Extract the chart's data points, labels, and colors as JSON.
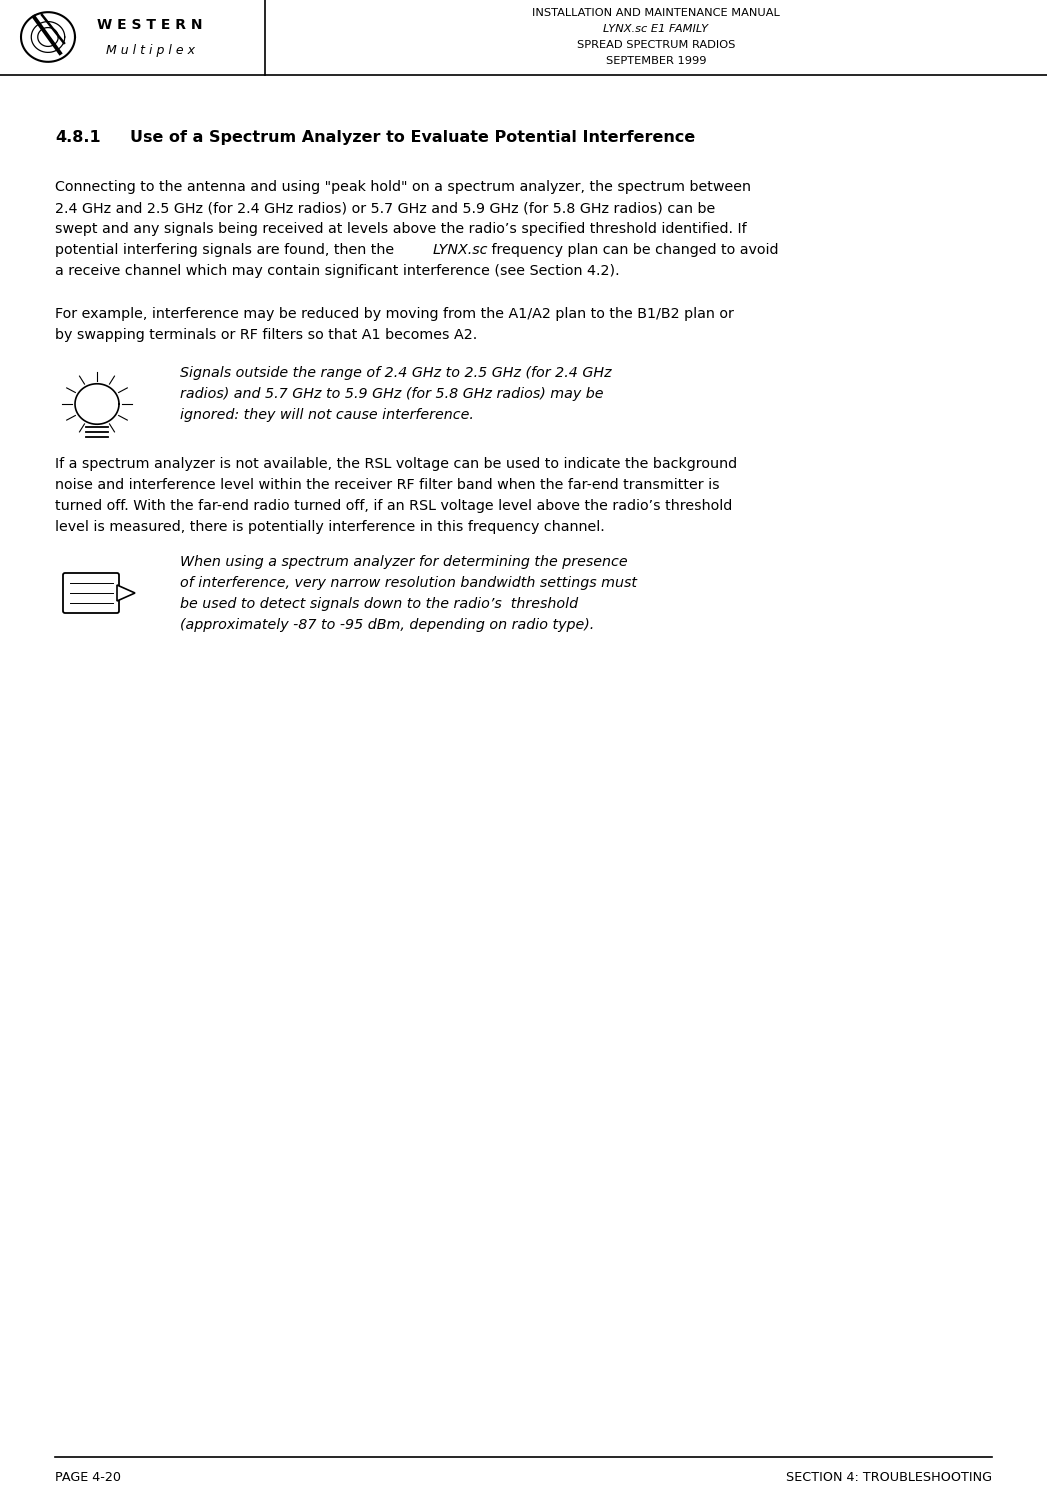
{
  "header_line1": "INSTALLATION AND MAINTENANCE MANUAL",
  "header_line2": "LYNX.sc E1 FAMILY",
  "header_line3": "SPREAD SPECTRUM RADIOS",
  "header_line4": "SEPTEMBER 1999",
  "section_title_num": "4.8.1",
  "section_title_text": "Use of a Spectrum Analyzer to Evaluate Potential Interference",
  "para1_line1": "Connecting to the antenna and using \"peak hold\" on a spectrum analyzer, the spectrum between",
  "para1_line2": "2.4 GHz and 2.5 GHz (for 2.4 GHz radios) or 5.7 GHz and 5.9 GHz (for 5.8 GHz radios) can be",
  "para1_line3": "swept and any signals being received at levels above the radio’s specified threshold identified. If",
  "para1_line4a": "potential interfering signals are found, then the ",
  "para1_line4b": "LYNX.sc",
  "para1_line4c": " frequency plan can be changed to avoid",
  "para1_line5": "a receive channel which may contain significant interference (see Section 4.2).",
  "para2_line1": "For example, interference may be reduced by moving from the A1/A2 plan to the B1/B2 plan or",
  "para2_line2": "by swapping terminals or RF filters so that A1 becomes A2.",
  "note1_line1": "Signals outside the range of 2.4 GHz to 2.5 GHz (for 2.4 GHz",
  "note1_line2": "radios) and 5.7 GHz to 5.9 GHz (for 5.8 GHz radios) may be",
  "note1_line3": "ignored: they will not cause interference.",
  "para3_line1": "If a spectrum analyzer is not available, the RSL voltage can be used to indicate the background",
  "para3_line2": "noise and interference level within the receiver RF filter band when the far-end transmitter is",
  "para3_line3": "turned off. With the far-end radio turned off, if an RSL voltage level above the radio’s threshold",
  "para3_line4": "level is measured, there is potentially interference in this frequency channel.",
  "note2_line1": "When using a spectrum analyzer for determining the presence",
  "note2_line2": "of interference, very narrow resolution bandwidth settings must",
  "note2_line3": "be used to detect signals down to the radio’s  threshold",
  "note2_line4": "(approximately -87 to -95 dBm, depending on radio type).",
  "footer_left": "PAGE 4-20",
  "footer_right": "SECTION 4: TROUBLESHOOTING",
  "bg_color": "#ffffff",
  "text_color": "#000000"
}
